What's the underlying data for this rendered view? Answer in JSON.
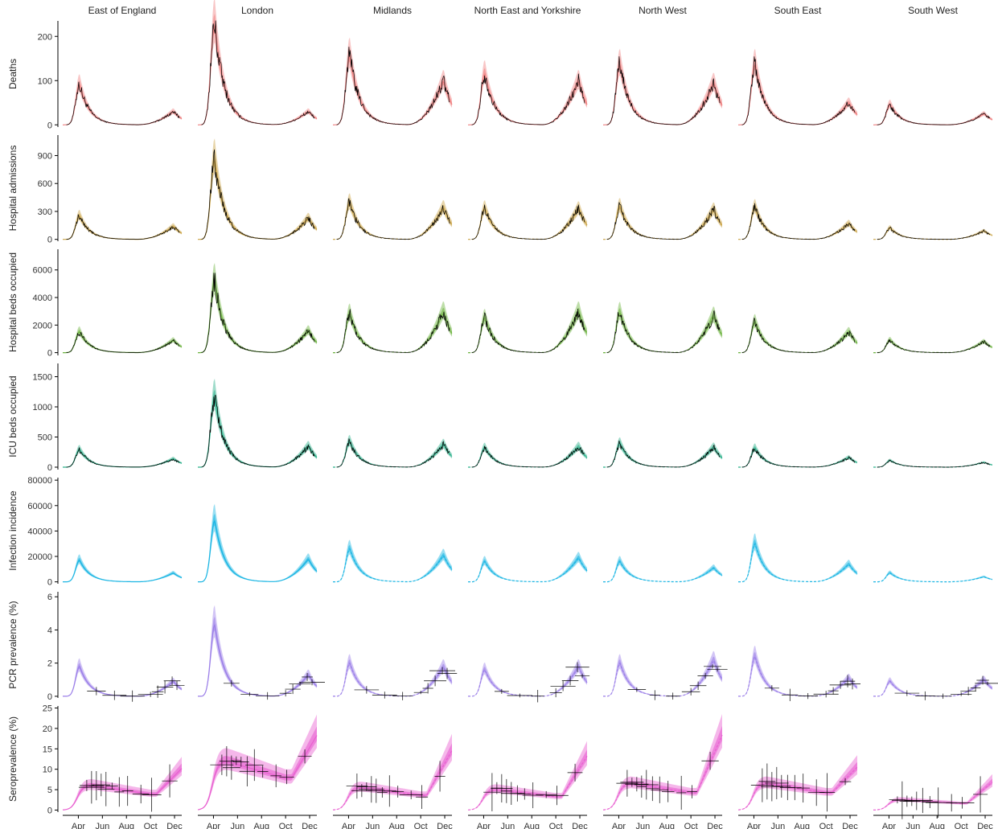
{
  "chart_data": {
    "type": "line",
    "figure": "faceted small multiples",
    "x_axis": {
      "domain_months": [
        2.7,
        12.6
      ],
      "tick_positions_month": [
        4,
        6,
        8,
        10,
        12
      ],
      "tick_labels": [
        "Apr",
        "Jun",
        "Aug",
        "Oct",
        "Dec"
      ]
    },
    "regions": [
      "East of England",
      "London",
      "Midlands",
      "North East and Yorkshire",
      "North West",
      "South East",
      "South West"
    ],
    "panels": [
      {
        "key": "deaths",
        "ylabel": "Deaths",
        "ylim": [
          -5,
          235
        ],
        "yticks": [
          0,
          100,
          200
        ],
        "color": "#f08080",
        "layers": "wave",
        "peaks": [
          90,
          225,
          155,
          115,
          135,
          135,
          45
        ],
        "wave2_peaks": [
          30,
          30,
          100,
          100,
          95,
          50,
          25
        ],
        "observed": true
      },
      {
        "key": "admissions",
        "ylabel": "Hospital admissions",
        "ylim": [
          -20,
          1120
        ],
        "yticks": [
          0,
          300,
          600,
          900
        ],
        "color": "#c9a243",
        "layers": "wave",
        "peaks": [
          250,
          850,
          390,
          330,
          350,
          340,
          120
        ],
        "wave2_peaks": [
          140,
          230,
          340,
          330,
          320,
          170,
          90
        ],
        "observed": true
      },
      {
        "key": "beds",
        "ylabel": "Hospital beds occupied",
        "ylim": [
          -200,
          7500
        ],
        "yticks": [
          0,
          2000,
          4000,
          6000
        ],
        "color": "#6cb33f",
        "layers": "wave",
        "peaks": [
          1500,
          5100,
          2800,
          2500,
          2900,
          2200,
          900
        ],
        "wave2_peaks": [
          900,
          1600,
          3000,
          3000,
          2700,
          1500,
          800
        ],
        "observed": true
      },
      {
        "key": "icu",
        "ylabel": "ICU beds occupied",
        "ylim": [
          -40,
          1720
        ],
        "yticks": [
          0,
          500,
          1000,
          1500
        ],
        "color": "#2bb08a",
        "layers": "wave",
        "peaks": [
          290,
          1150,
          420,
          320,
          390,
          310,
          110
        ],
        "wave2_peaks": [
          140,
          350,
          380,
          340,
          330,
          160,
          80
        ],
        "observed": true
      },
      {
        "key": "incidence",
        "ylabel": "Infection incidence",
        "ylim": [
          -1500,
          82000
        ],
        "yticks": [
          0,
          20000,
          40000,
          60000,
          80000
        ],
        "color": "#1ab5e3",
        "layers": "wave",
        "peaks": [
          17000,
          48000,
          26000,
          16000,
          16000,
          30000,
          7000
        ],
        "wave2_peaks": [
          7000,
          18000,
          21000,
          19000,
          11000,
          14000,
          4000
        ],
        "observed": false
      },
      {
        "key": "pcr",
        "ylabel": "PCR prevalence (%)",
        "ylim": [
          -0.1,
          6.3
        ],
        "yticks": [
          0,
          2,
          4,
          6
        ],
        "color": "#9b7fe8",
        "layers": "wave",
        "peaks": [
          1.8,
          4.3,
          2.0,
          1.6,
          2.0,
          2.4,
          0.9
        ],
        "wave2_peaks": [
          0.9,
          1.3,
          1.8,
          1.8,
          2.2,
          1.1,
          1.0
        ],
        "observed": false
      },
      {
        "key": "sero",
        "ylabel": "Seroprevalence (%)",
        "ylim": [
          -0.5,
          25.5
        ],
        "yticks": [
          0,
          5,
          10,
          15,
          20,
          25
        ],
        "color": "#e85fd0",
        "layers": "sero",
        "levels": [
          6,
          12,
          5.5,
          5,
          6.5,
          6.5,
          2.5
        ],
        "late": [
          6,
          10,
          10.5,
          9.5,
          13.5,
          6,
          5
        ],
        "observed": false
      }
    ]
  }
}
